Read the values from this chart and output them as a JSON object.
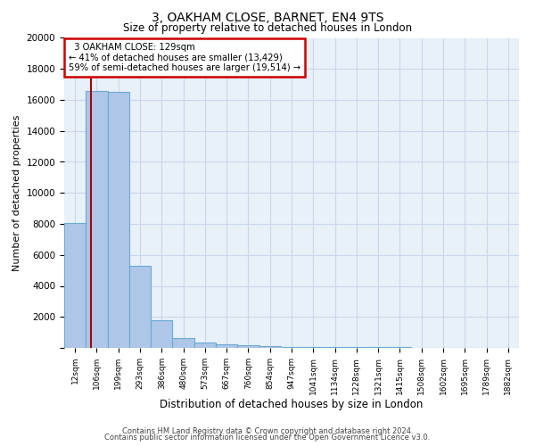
{
  "title1": "3, OAKHAM CLOSE, BARNET, EN4 9TS",
  "title2": "Size of property relative to detached houses in London",
  "xlabel": "Distribution of detached houses by size in London",
  "ylabel": "Number of detached properties",
  "categories": [
    "12sqm",
    "106sqm",
    "199sqm",
    "293sqm",
    "386sqm",
    "480sqm",
    "573sqm",
    "667sqm",
    "760sqm",
    "854sqm",
    "947sqm",
    "1041sqm",
    "1134sqm",
    "1228sqm",
    "1321sqm",
    "1415sqm",
    "1508sqm",
    "1602sqm",
    "1695sqm",
    "1789sqm",
    "1882sqm"
  ],
  "values": [
    8050,
    16600,
    16500,
    5300,
    1800,
    620,
    360,
    210,
    150,
    100,
    85,
    65,
    55,
    45,
    38,
    30,
    22,
    18,
    14,
    10,
    8
  ],
  "bar_color": "#aec6e8",
  "bar_edge_color": "#6aaad4",
  "annotation_line": "3 OAKHAM CLOSE: 129sqm",
  "annotation_smaller": "← 41% of detached houses are smaller (13,429)",
  "annotation_larger": "59% of semi-detached houses are larger (19,514) →",
  "annotation_box_color": "#ffffff",
  "annotation_box_edge_color": "#cc0000",
  "vline_color": "#aa0000",
  "ylim": [
    0,
    20000
  ],
  "yticks": [
    0,
    2000,
    4000,
    6000,
    8000,
    10000,
    12000,
    14000,
    16000,
    18000,
    20000
  ],
  "grid_color": "#c8d8ec",
  "bg_color": "#e8f0f8",
  "footer1": "Contains HM Land Registry data © Crown copyright and database right 2024.",
  "footer2": "Contains public sector information licensed under the Open Government Licence v3.0."
}
